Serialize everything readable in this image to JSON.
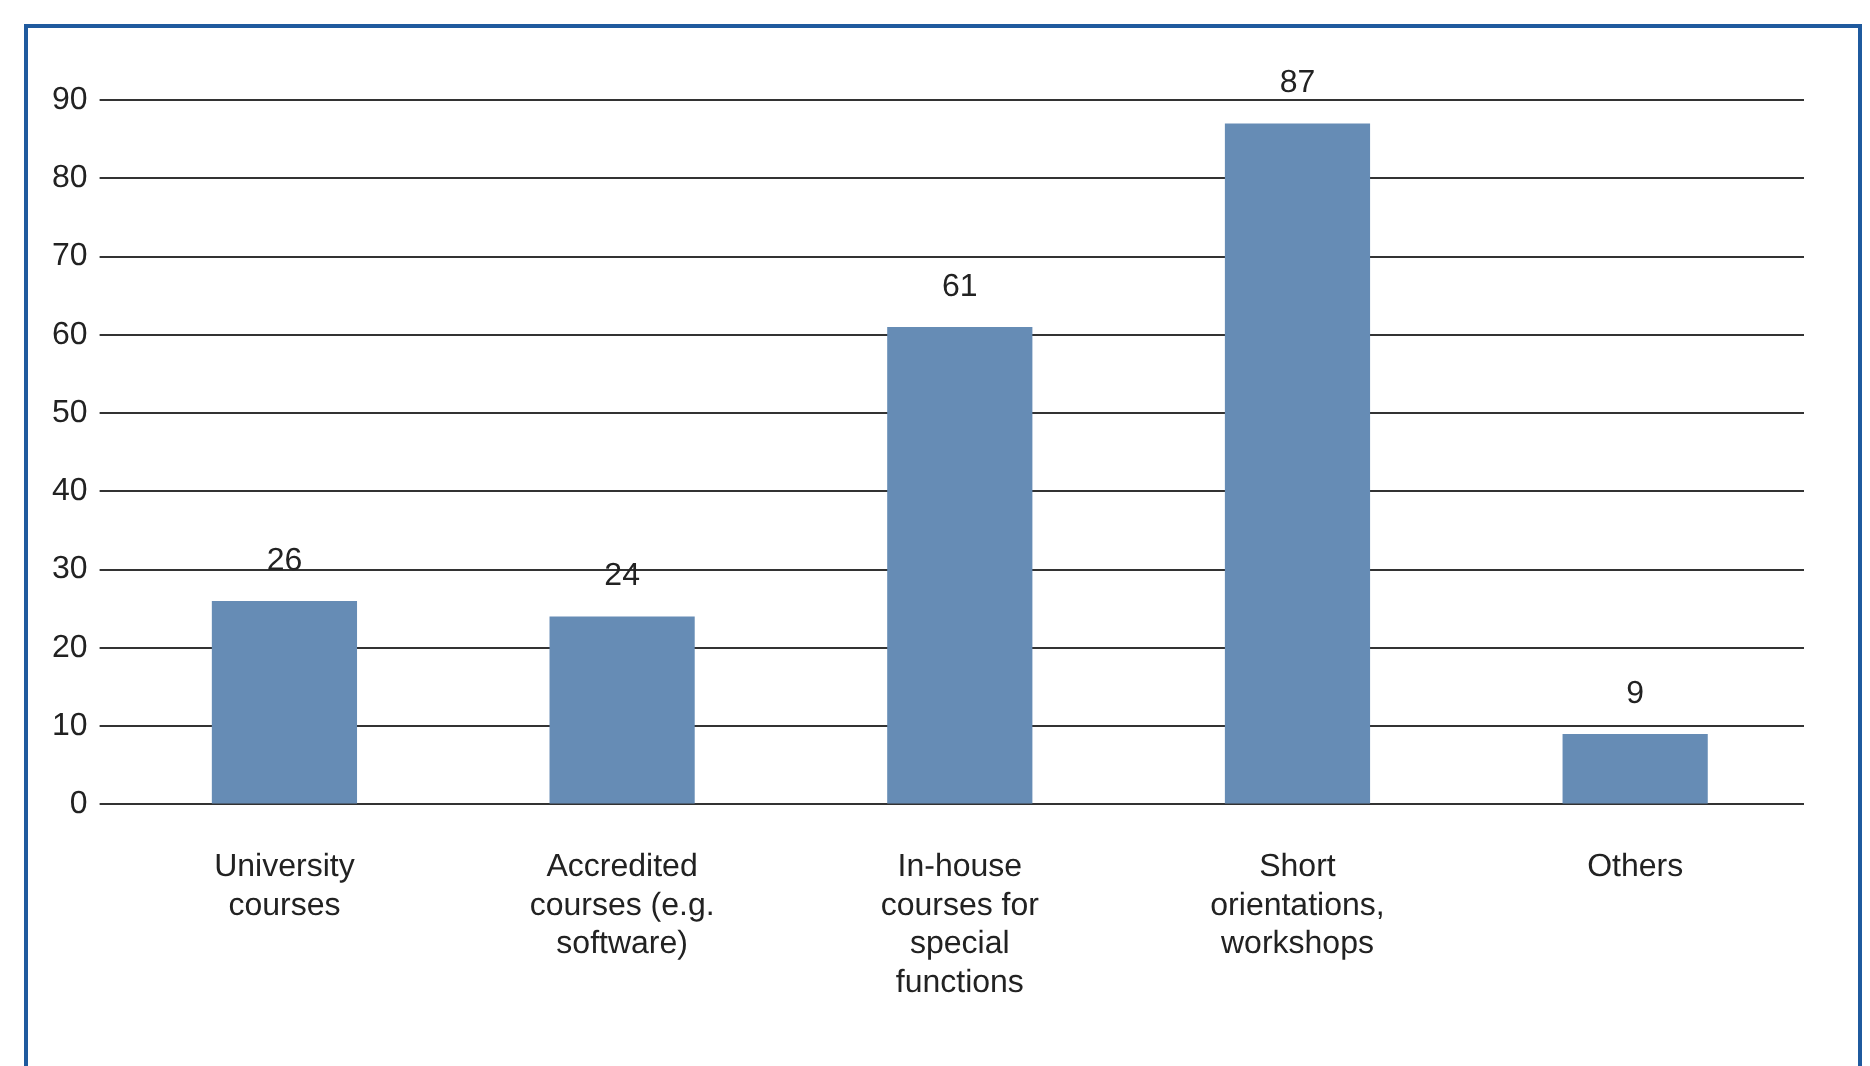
{
  "chart_data": {
    "type": "bar",
    "categories": [
      "University courses",
      "Accredited courses (e.g. software)",
      "In-house courses for special functions",
      "Short orientations, workshops",
      "Others"
    ],
    "values": [
      26,
      24,
      61,
      87,
      9
    ],
    "color": "#668cb5",
    "ylim": [
      0,
      90
    ],
    "yticks": [
      0,
      10,
      20,
      30,
      40,
      50,
      60,
      70,
      80,
      90
    ],
    "grid": "y",
    "data_labels": true,
    "legend": false
  }
}
